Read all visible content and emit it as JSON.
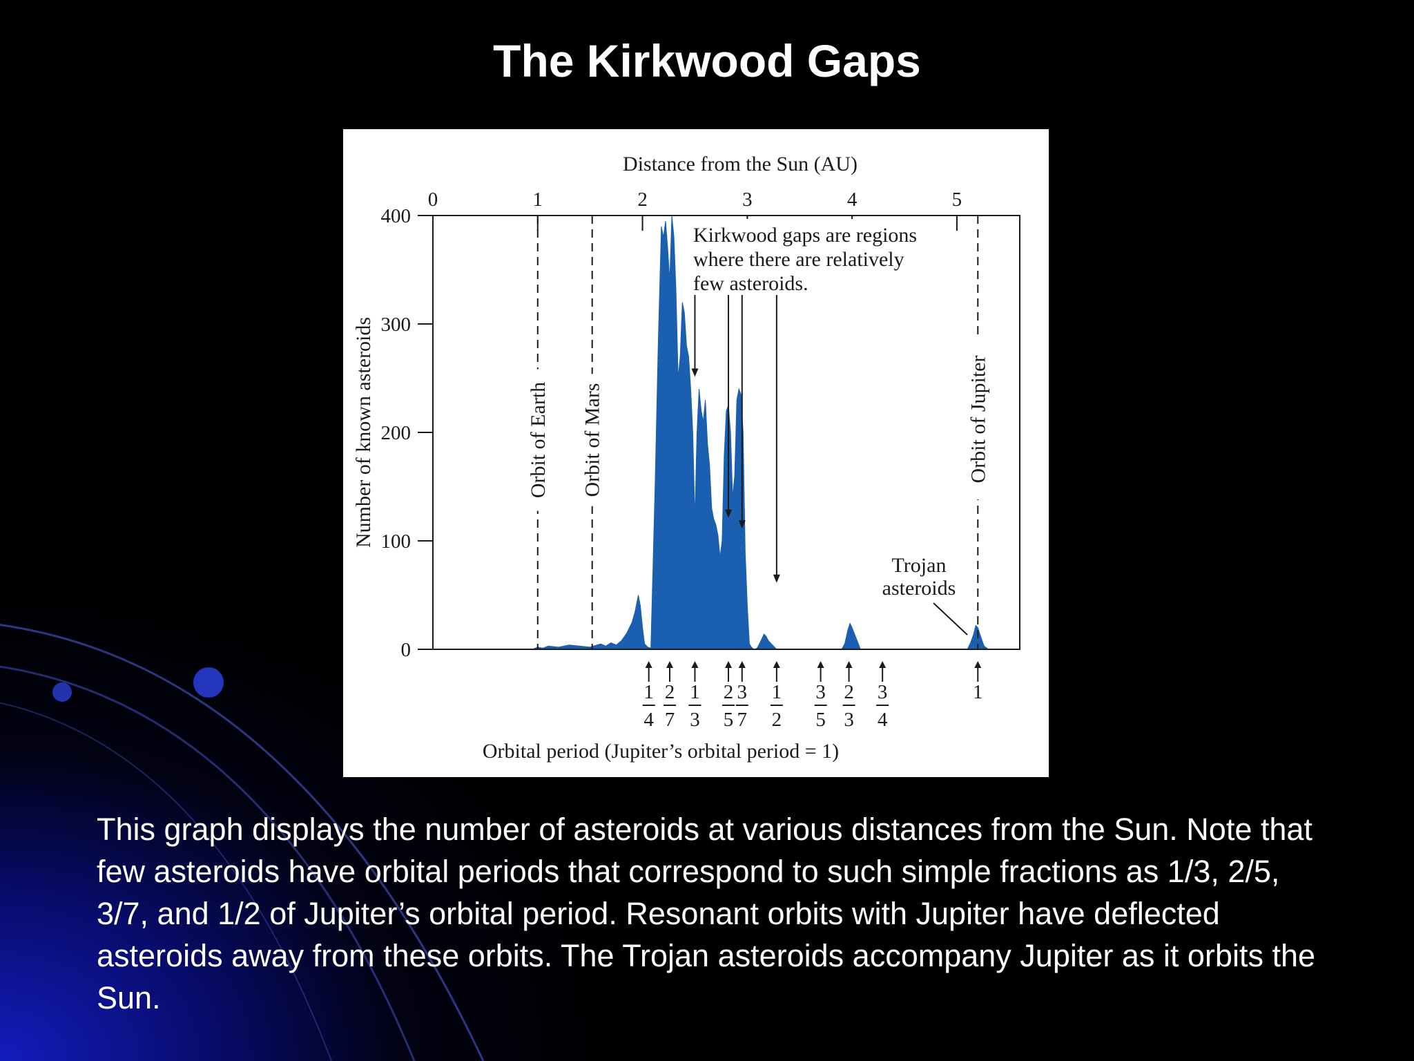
{
  "slide": {
    "title": "The Kirkwood Gaps",
    "caption": "This graph displays the number of asteroids at various distances from the Sun. Note that few asteroids have orbital periods that correspond to such simple fractions as 1/3, 2/5, 3/7, and 1/2 of Jupiter’s orbital period. Resonant orbits with Jupiter have deflected asteroids away from these orbits. The Trojan asteroids accompany Jupiter as it orbits the Sun."
  },
  "colors": {
    "histogram_fill": "#1a5fb0",
    "slide_background": "#000000",
    "glow": "#1a22c8"
  },
  "chart_data": {
    "type": "area",
    "title": "",
    "xlabel": "Distance from the Sun (AU)",
    "x_bottom_label": "Orbital period (Jupiter’s orbital period = 1)",
    "ylabel": "Number of known asteroids",
    "xlim": [
      0,
      5.6
    ],
    "ylim": [
      0,
      400
    ],
    "x_ticks": [
      0,
      1,
      2,
      3,
      4,
      5
    ],
    "y_ticks": [
      0,
      100,
      200,
      300,
      400
    ],
    "grid": false,
    "series": [
      {
        "x": [
          0.95,
          1.0,
          1.05,
          1.1,
          1.2,
          1.3,
          1.4,
          1.5,
          1.6,
          1.65,
          1.7,
          1.75,
          1.8,
          1.85,
          1.9,
          1.93,
          1.96,
          1.98,
          2.0,
          2.02,
          2.05,
          2.08,
          2.12,
          2.15,
          2.18,
          2.2,
          2.22,
          2.24,
          2.26,
          2.28,
          2.3,
          2.32,
          2.34,
          2.36,
          2.38,
          2.4,
          2.42,
          2.44,
          2.46,
          2.48,
          2.5,
          2.52,
          2.54,
          2.56,
          2.58,
          2.6,
          2.62,
          2.64,
          2.66,
          2.68,
          2.7,
          2.72,
          2.74,
          2.76,
          2.78,
          2.8,
          2.82,
          2.84,
          2.86,
          2.88,
          2.9,
          2.92,
          2.94,
          2.96,
          2.98,
          3.0,
          3.02,
          3.04,
          3.06,
          3.08,
          3.1,
          3.12,
          3.14,
          3.16,
          3.18,
          3.2,
          3.22,
          3.24,
          3.26,
          3.28,
          3.3,
          3.33,
          3.36,
          3.4,
          3.45,
          3.5,
          3.55,
          3.6,
          3.62,
          3.65,
          3.9,
          3.93,
          3.96,
          3.98,
          4.0,
          4.02,
          4.04,
          4.06,
          4.08,
          5.1,
          5.13,
          5.16,
          5.18,
          5.2,
          5.22,
          5.24,
          5.26,
          5.3
        ],
        "values": [
          0,
          2,
          1,
          3,
          2,
          4,
          3,
          2,
          5,
          3,
          6,
          4,
          8,
          15,
          25,
          35,
          50,
          40,
          20,
          5,
          2,
          1,
          150,
          280,
          390,
          380,
          395,
          370,
          340,
          400,
          380,
          330,
          250,
          270,
          320,
          310,
          280,
          270,
          240,
          200,
          120,
          200,
          240,
          220,
          210,
          230,
          190,
          170,
          130,
          120,
          115,
          105,
          85,
          100,
          180,
          220,
          225,
          200,
          140,
          160,
          230,
          240,
          235,
          200,
          90,
          40,
          5,
          2,
          0,
          0,
          2,
          6,
          10,
          14,
          12,
          8,
          6,
          4,
          2,
          0,
          0,
          0,
          0,
          0,
          0,
          0,
          0,
          0,
          0,
          0,
          0,
          5,
          18,
          24,
          20,
          15,
          10,
          5,
          0,
          0,
          6,
          14,
          22,
          20,
          14,
          8,
          3,
          0
        ]
      }
    ],
    "orbit_lines": [
      {
        "label": "Orbit of Earth",
        "x": 1.0
      },
      {
        "label": "Orbit of Mars",
        "x": 1.52
      },
      {
        "label": "Orbit of Jupiter",
        "x": 5.2
      }
    ],
    "resonances": [
      {
        "num": "1",
        "den": "4",
        "x": 2.06
      },
      {
        "num": "2",
        "den": "7",
        "x": 2.26
      },
      {
        "num": "1",
        "den": "3",
        "x": 2.5
      },
      {
        "num": "2",
        "den": "5",
        "x": 2.82
      },
      {
        "num": "3",
        "den": "7",
        "x": 2.95
      },
      {
        "num": "1",
        "den": "2",
        "x": 3.28
      },
      {
        "num": "3",
        "den": "5",
        "x": 3.7
      },
      {
        "num": "2",
        "den": "3",
        "x": 3.97
      },
      {
        "num": "3",
        "den": "4",
        "x": 4.29
      },
      {
        "num": "1",
        "den": "",
        "x": 5.2
      }
    ],
    "gap_arrows": [
      2.5,
      2.82,
      2.95,
      3.28
    ],
    "annotations": {
      "kirkwood_lines": [
        "Kirkwood gaps are regions",
        "where there are relatively",
        "few asteroids."
      ],
      "trojan_lines": [
        "Trojan",
        "asteroids"
      ]
    }
  }
}
